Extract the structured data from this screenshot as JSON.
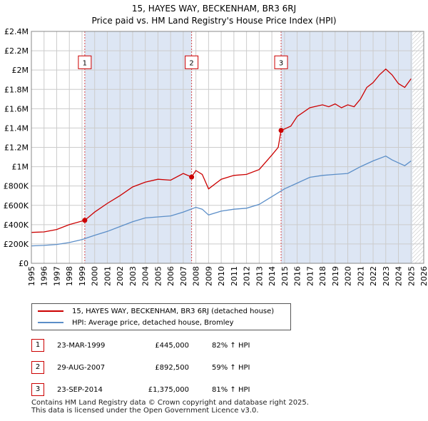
{
  "chart_data": {
    "type": "line",
    "title": "15, HAYES WAY, BECKENHAM, BR3 6RJ",
    "subtitle": "Price paid vs. HM Land Registry's House Price Index (HPI)",
    "xlim": [
      1995,
      2026
    ],
    "ylim": [
      0,
      2400000
    ],
    "x_ticks": [
      "1995",
      "1996",
      "1997",
      "1998",
      "1999",
      "2000",
      "2001",
      "2002",
      "2003",
      "2004",
      "2005",
      "2006",
      "2007",
      "2008",
      "2009",
      "2010",
      "2011",
      "2012",
      "2013",
      "2014",
      "2015",
      "2016",
      "2017",
      "2018",
      "2019",
      "2020",
      "2021",
      "2022",
      "2023",
      "2024",
      "2025",
      "2026"
    ],
    "y_ticks": [
      {
        "value": 0,
        "label": "£0"
      },
      {
        "value": 200000,
        "label": "£200K"
      },
      {
        "value": 400000,
        "label": "£400K"
      },
      {
        "value": 600000,
        "label": "£600K"
      },
      {
        "value": 800000,
        "label": "£800K"
      },
      {
        "value": 1000000,
        "label": "£1M"
      },
      {
        "value": 1200000,
        "label": "£1.2M"
      },
      {
        "value": 1400000,
        "label": "£1.4M"
      },
      {
        "value": 1600000,
        "label": "£1.6M"
      },
      {
        "value": 1800000,
        "label": "£1.8M"
      },
      {
        "value": 2000000,
        "label": "£2M"
      },
      {
        "value": 2200000,
        "label": "£2.2M"
      },
      {
        "value": 2400000,
        "label": "£2.4M"
      }
    ],
    "shaded_ranges": [
      [
        1999.22,
        2007.66
      ],
      [
        2014.73,
        2025.1
      ]
    ],
    "hatch_from": 2025.1,
    "series": [
      {
        "name": "15, HAYES WAY, BECKENHAM, BR3 6RJ (detached house)",
        "color": "#cc0000",
        "points": [
          [
            1995,
            320000
          ],
          [
            1996,
            325000
          ],
          [
            1997,
            350000
          ],
          [
            1998,
            400000
          ],
          [
            1999.22,
            445000
          ],
          [
            2000,
            530000
          ],
          [
            2001,
            620000
          ],
          [
            2002,
            700000
          ],
          [
            2003,
            790000
          ],
          [
            2004,
            840000
          ],
          [
            2005,
            870000
          ],
          [
            2006,
            860000
          ],
          [
            2007,
            930000
          ],
          [
            2007.66,
            892500
          ],
          [
            2008,
            960000
          ],
          [
            2008.5,
            920000
          ],
          [
            2009,
            770000
          ],
          [
            2010,
            870000
          ],
          [
            2011,
            910000
          ],
          [
            2012,
            920000
          ],
          [
            2013,
            970000
          ],
          [
            2014,
            1120000
          ],
          [
            2014.5,
            1200000
          ],
          [
            2014.73,
            1375000
          ],
          [
            2015,
            1390000
          ],
          [
            2015.5,
            1420000
          ],
          [
            2016,
            1520000
          ],
          [
            2017,
            1610000
          ],
          [
            2018,
            1640000
          ],
          [
            2018.5,
            1620000
          ],
          [
            2019,
            1650000
          ],
          [
            2019.5,
            1610000
          ],
          [
            2020,
            1640000
          ],
          [
            2020.5,
            1620000
          ],
          [
            2021,
            1700000
          ],
          [
            2021.5,
            1820000
          ],
          [
            2022,
            1870000
          ],
          [
            2022.5,
            1950000
          ],
          [
            2023,
            2010000
          ],
          [
            2023.5,
            1950000
          ],
          [
            2024,
            1860000
          ],
          [
            2024.5,
            1820000
          ],
          [
            2025,
            1910000
          ]
        ]
      },
      {
        "name": "HPI: Average price, detached house, Bromley",
        "color": "#5b8ec8",
        "points": [
          [
            1995,
            180000
          ],
          [
            1996,
            185000
          ],
          [
            1997,
            195000
          ],
          [
            1998,
            215000
          ],
          [
            1999,
            245000
          ],
          [
            2000,
            290000
          ],
          [
            2001,
            330000
          ],
          [
            2002,
            380000
          ],
          [
            2003,
            430000
          ],
          [
            2004,
            470000
          ],
          [
            2005,
            480000
          ],
          [
            2006,
            490000
          ],
          [
            2007,
            530000
          ],
          [
            2008,
            580000
          ],
          [
            2008.5,
            560000
          ],
          [
            2009,
            500000
          ],
          [
            2010,
            540000
          ],
          [
            2011,
            560000
          ],
          [
            2012,
            570000
          ],
          [
            2013,
            610000
          ],
          [
            2014,
            690000
          ],
          [
            2015,
            770000
          ],
          [
            2016,
            830000
          ],
          [
            2017,
            890000
          ],
          [
            2018,
            910000
          ],
          [
            2019,
            920000
          ],
          [
            2020,
            930000
          ],
          [
            2021,
            1000000
          ],
          [
            2022,
            1060000
          ],
          [
            2023,
            1110000
          ],
          [
            2023.5,
            1070000
          ],
          [
            2024,
            1040000
          ],
          [
            2024.5,
            1010000
          ],
          [
            2025,
            1060000
          ]
        ]
      }
    ],
    "sales": [
      {
        "id": "1",
        "x": 1999.22,
        "y": 445000
      },
      {
        "id": "2",
        "x": 2007.66,
        "y": 892500
      },
      {
        "id": "3",
        "x": 2014.73,
        "y": 1375000
      }
    ],
    "marker_label_y": 2080000
  },
  "legend": {
    "property_label": "15, HAYES WAY, BECKENHAM, BR3 6RJ (detached house)",
    "hpi_label": "HPI: Average price, detached house, Bromley"
  },
  "sales_table": [
    {
      "num": "1",
      "date": "23-MAR-1999",
      "price": "£445,000",
      "hpi": "82% ↑ HPI"
    },
    {
      "num": "2",
      "date": "29-AUG-2007",
      "price": "£892,500",
      "hpi": "59% ↑ HPI"
    },
    {
      "num": "3",
      "date": "23-SEP-2014",
      "price": "£1,375,000",
      "hpi": "81% ↑ HPI"
    }
  ],
  "footer": {
    "line1": "Contains HM Land Registry data © Crown copyright and database right 2025.",
    "line2": "This data is licensed under the Open Government Licence v3.0."
  },
  "colors": {
    "property": "#cc0000",
    "hpi": "#5b8ec8",
    "shade": "#dde6f4"
  }
}
